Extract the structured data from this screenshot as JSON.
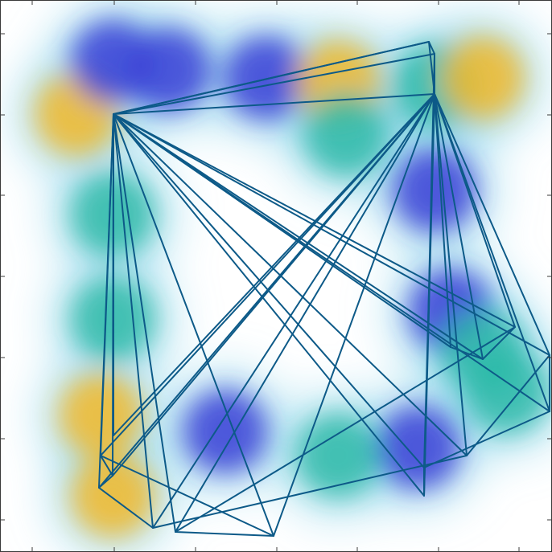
{
  "chart_data": {
    "type": "heatmap",
    "title": "",
    "xlabel": "",
    "ylabel": "",
    "xlim": [
      0,
      686
    ],
    "ylim": [
      0,
      687
    ],
    "x_ticks": [
      40,
      142,
      243,
      344,
      444,
      545,
      645
    ],
    "y_ticks": [
      40,
      141,
      242,
      343,
      444,
      544,
      645
    ],
    "grid": false,
    "legend": "none",
    "colors": {
      "trajectory": "#0d5a88",
      "background": "#ffffff",
      "frame": "#3a3a3a"
    },
    "colormap": [
      "#ffffff",
      "#d6f2f4",
      "#7fd0ea",
      "#3e8ff0",
      "#3a3fd6",
      "#2dbaa8",
      "#f2b829",
      "#f4dc28"
    ],
    "heatmap_blobs": [
      {
        "x": 95,
        "y": 545,
        "level": 0.85
      },
      {
        "x": 140,
        "y": 610,
        "level": 0.55
      },
      {
        "x": 140,
        "y": 420,
        "level": 0.7
      },
      {
        "x": 140,
        "y": 290,
        "level": 0.75
      },
      {
        "x": 125,
        "y": 170,
        "level": 0.8
      },
      {
        "x": 140,
        "y": 70,
        "level": 0.85
      },
      {
        "x": 210,
        "y": 600,
        "level": 0.6
      },
      {
        "x": 330,
        "y": 590,
        "level": 0.55
      },
      {
        "x": 420,
        "y": 585,
        "level": 0.8
      },
      {
        "x": 430,
        "y": 520,
        "level": 0.75
      },
      {
        "x": 540,
        "y": 580,
        "level": 0.65
      },
      {
        "x": 600,
        "y": 590,
        "level": 0.85
      },
      {
        "x": 540,
        "y": 450,
        "level": 0.6
      },
      {
        "x": 560,
        "y": 300,
        "level": 0.6
      },
      {
        "x": 600,
        "y": 250,
        "level": 0.75
      },
      {
        "x": 630,
        "y": 200,
        "level": 0.7
      },
      {
        "x": 520,
        "y": 130,
        "level": 0.55
      },
      {
        "x": 420,
        "y": 120,
        "level": 0.75
      },
      {
        "x": 280,
        "y": 150,
        "level": 0.6
      }
    ],
    "hub_points": [
      {
        "x": 141,
        "y": 545
      },
      {
        "x": 540,
        "y": 570
      }
    ],
    "trajectory_vertices": [
      {
        "x": 141,
        "y": 145
      },
      {
        "x": 141,
        "y": 545
      },
      {
        "x": 533,
        "y": 635
      },
      {
        "x": 540,
        "y": 620
      },
      {
        "x": 527,
        "y": 70
      },
      {
        "x": 527,
        "y": 105
      },
      {
        "x": 683,
        "y": 175
      },
      {
        "x": 683,
        "y": 245
      },
      {
        "x": 580,
        "y": 120
      },
      {
        "x": 190,
        "y": 30
      },
      {
        "x": 123,
        "y": 80
      },
      {
        "x": 140,
        "y": 95
      },
      {
        "x": 125,
        "y": 120
      },
      {
        "x": 340,
        "y": 20
      },
      {
        "x": 218,
        "y": 25
      },
      {
        "x": 640,
        "y": 280
      },
      {
        "x": 600,
        "y": 240
      },
      {
        "x": 560,
        "y": 255
      }
    ]
  }
}
